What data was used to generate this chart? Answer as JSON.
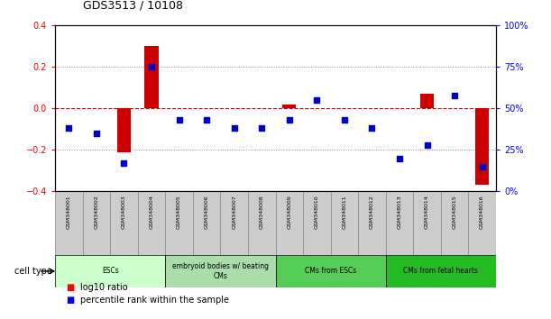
{
  "title": "GDS3513 / 10108",
  "samples": [
    "GSM348001",
    "GSM348002",
    "GSM348003",
    "GSM348004",
    "GSM348005",
    "GSM348006",
    "GSM348007",
    "GSM348008",
    "GSM348009",
    "GSM348010",
    "GSM348011",
    "GSM348012",
    "GSM348013",
    "GSM348014",
    "GSM348015",
    "GSM348016"
  ],
  "log10_ratio": [
    0.0,
    0.0,
    -0.21,
    0.3,
    0.0,
    0.0,
    0.0,
    0.0,
    0.02,
    0.0,
    0.0,
    0.0,
    0.0,
    0.07,
    0.0,
    -0.37
  ],
  "percentile_rank": [
    38,
    35,
    17,
    75,
    43,
    43,
    38,
    38,
    43,
    55,
    43,
    38,
    20,
    28,
    58,
    15
  ],
  "cell_type_groups": [
    {
      "label": "ESCs",
      "start": 0,
      "end": 3,
      "color": "#ccffcc"
    },
    {
      "label": "embryoid bodies w/ beating\nCMs",
      "start": 4,
      "end": 7,
      "color": "#aaddaa"
    },
    {
      "label": "CMs from ESCs",
      "start": 8,
      "end": 11,
      "color": "#55cc55"
    },
    {
      "label": "CMs from fetal hearts",
      "start": 12,
      "end": 15,
      "color": "#22bb22"
    }
  ],
  "ylim_left": [
    -0.4,
    0.4
  ],
  "ylim_right": [
    0,
    100
  ],
  "yticks_left": [
    -0.4,
    -0.2,
    0.0,
    0.2,
    0.4
  ],
  "yticks_right": [
    0,
    25,
    50,
    75,
    100
  ],
  "ytick_labels_right": [
    "0%",
    "25%",
    "50%",
    "75%",
    "100%"
  ],
  "bar_color": "#cc0000",
  "dot_color": "#0000cc",
  "zero_line_color": "#cc0000",
  "dotted_line_color": "#888888",
  "bg_color": "#ffffff",
  "sample_box_color": "#cccccc",
  "sample_box_edge": "#888888"
}
